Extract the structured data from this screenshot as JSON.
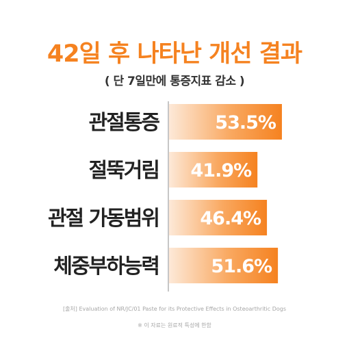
{
  "header": {
    "title": "42일 후 나타난 개선 결과",
    "subtitle": "( 단 7일만에 통증지표 감소 )"
  },
  "footer": {
    "source": "[출처] Evaluation of NR/JC/01 Paste for its Protective Effects in Osteoarthritic Dogs",
    "note": "※ 이 자료는 원료적 특성에 한함"
  },
  "colors": {
    "accent": "#f58220",
    "bar_fade": "#fde9d8",
    "text": "#222222",
    "axis": "#b3b3b3"
  },
  "chart_data": {
    "type": "bar",
    "orientation": "horizontal",
    "categories": [
      "관절통증",
      "절뚝거림",
      "관절 가동범위",
      "체중부하능력"
    ],
    "values": [
      53.5,
      41.9,
      46.4,
      51.6
    ],
    "value_labels": [
      "53.5%",
      "41.9%",
      "46.4%",
      "51.6%"
    ],
    "xlim": [
      0,
      60
    ],
    "grid": false,
    "legend": "none"
  }
}
